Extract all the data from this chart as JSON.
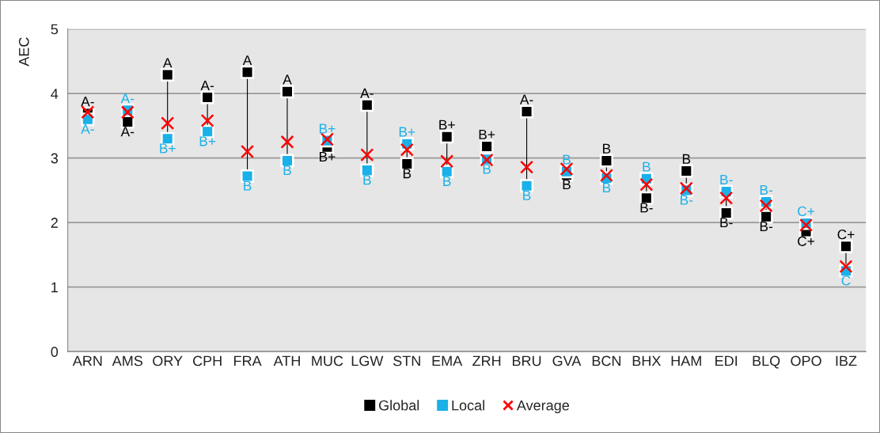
{
  "chart_data": {
    "type": "scatter",
    "ylabel": "AEC",
    "categories": [
      "ARN",
      "AMS",
      "ORY",
      "CPH",
      "FRA",
      "ATH",
      "MUC",
      "LGW",
      "STN",
      "EMA",
      "ZRH",
      "BRU",
      "GVA",
      "BCN",
      "BHX",
      "HAM",
      "EDI",
      "BLQ",
      "OPO",
      "IBZ"
    ],
    "series": [
      {
        "name": "Global",
        "color": "#000000",
        "marker": "square",
        "values": [
          3.69,
          3.56,
          4.29,
          3.94,
          4.33,
          4.03,
          3.17,
          3.82,
          2.91,
          3.33,
          3.18,
          3.72,
          2.74,
          2.96,
          2.38,
          2.8,
          2.15,
          2.09,
          1.86,
          1.63
        ],
        "value_labels": [
          "A-",
          "A-",
          "A",
          "A-",
          "A",
          "A",
          "B+",
          "A-",
          "B",
          "B+",
          "B+",
          "A-",
          "B",
          "B",
          "B-",
          "B",
          "B-",
          "B-",
          "C+",
          "C+"
        ]
      },
      {
        "name": "Local",
        "color": "#1ab0e8",
        "marker": "square",
        "values": [
          3.6,
          3.74,
          3.3,
          3.41,
          2.72,
          2.96,
          3.27,
          2.81,
          3.22,
          2.79,
          2.98,
          2.57,
          2.79,
          2.69,
          2.68,
          2.5,
          2.48,
          2.32,
          1.99,
          1.25
        ],
        "value_labels": [
          "A-",
          "A-",
          "B+",
          "B+",
          "B",
          "B",
          "B+",
          "B",
          "B+",
          "B",
          "B",
          "B",
          "B",
          "B",
          "B",
          "B-",
          "B-",
          "B-",
          "C+",
          "C"
        ]
      },
      {
        "name": "Average",
        "color": "#ff0000",
        "marker": "cross",
        "values": [
          3.71,
          3.71,
          3.54,
          3.58,
          3.1,
          3.25,
          3.29,
          3.05,
          3.13,
          2.95,
          2.97,
          2.86,
          2.83,
          2.73,
          2.59,
          2.53,
          2.38,
          2.26,
          1.96,
          1.32
        ]
      }
    ],
    "ylim": [
      0,
      5
    ],
    "yticks": [
      0,
      1,
      2,
      3,
      4,
      5
    ],
    "grid": "y",
    "legend": "bottom"
  }
}
